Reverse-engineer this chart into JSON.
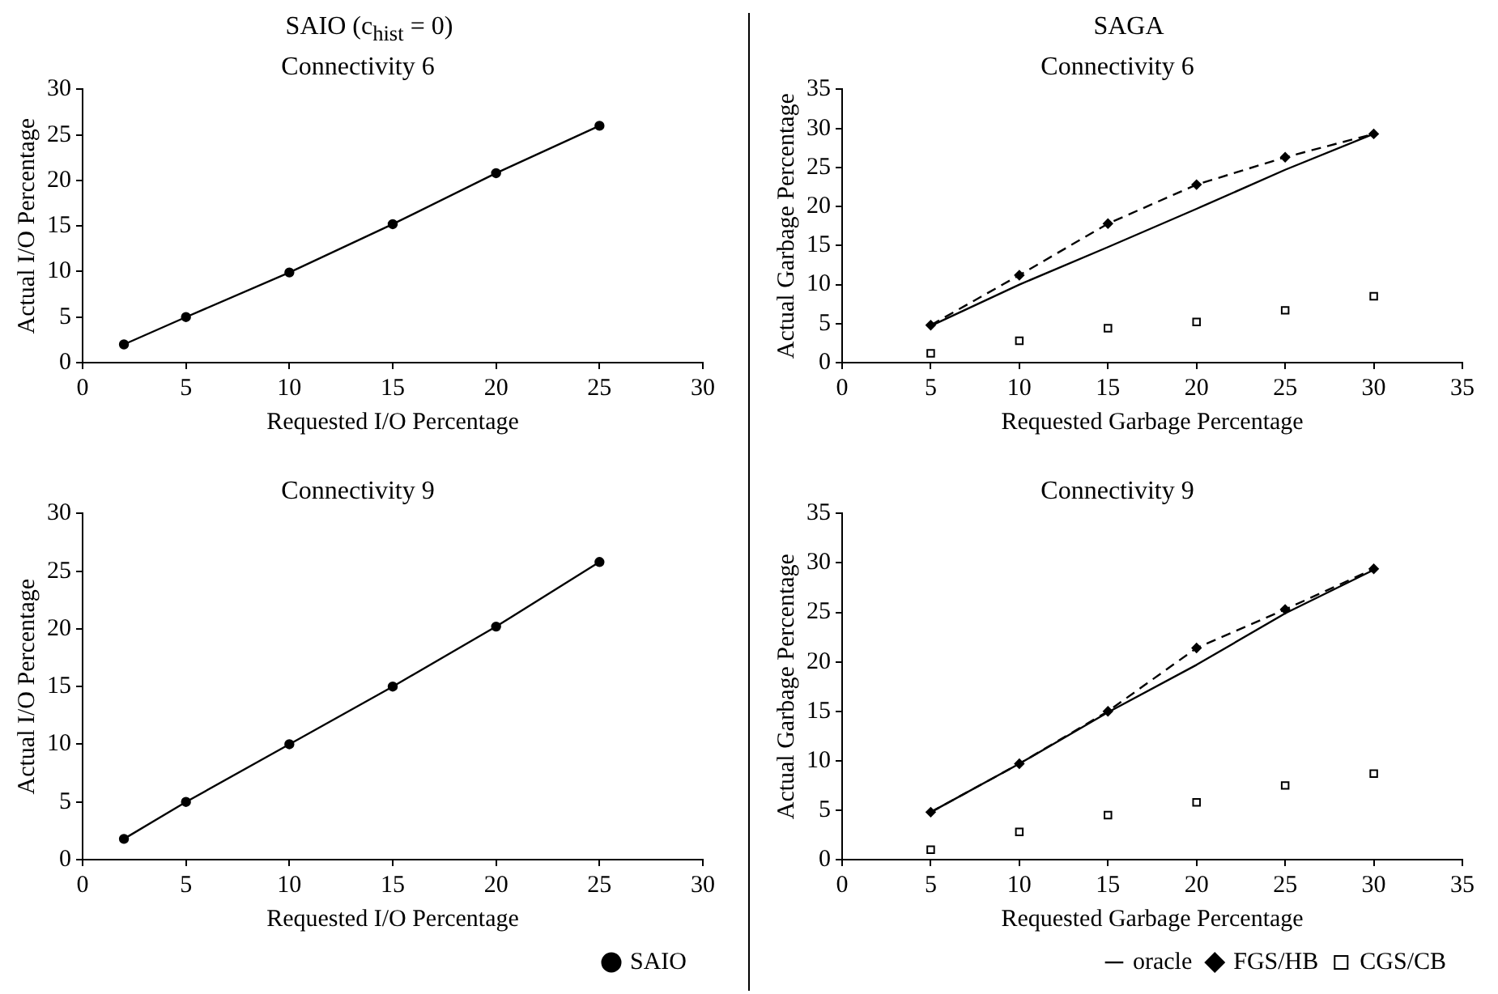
{
  "chart_data": [
    {
      "type": "line",
      "subtitle": "SAIO (c$_{hist}$ = 0)",
      "title": "Connectivity 6",
      "xlabel": "Requested I/O Percentage",
      "ylabel": "Actual I/O Percentage",
      "x": [
        2,
        5,
        10,
        15,
        20,
        25
      ],
      "series": [
        {
          "color": "#000000",
          "values": [
            2,
            5,
            9.9,
            15.2,
            20.8,
            26
          ]
        }
      ],
      "marker": "circle",
      "line_style": "solid",
      "xlim": [
        0,
        30
      ],
      "xticks": [
        0,
        5,
        10,
        15,
        20,
        25,
        30
      ],
      "ylim": [
        0,
        30
      ],
      "yticks": [
        0,
        5,
        10,
        15,
        20,
        25,
        30
      ],
      "grid": false,
      "legend": false
    },
    {
      "type": "line",
      "subtitle": "SAGA",
      "title": "Connectivity 6",
      "xlabel": "Requested Garbage Percentage",
      "ylabel": "Actual Garbage Percentage",
      "x": [
        5,
        10,
        15,
        20,
        25,
        30
      ],
      "series": [
        {
          "color": "#000000",
          "marker": "none",
          "line_style": "solid",
          "values": [
            4.7,
            10,
            14.8,
            19.7,
            24.7,
            29.3
          ]
        },
        {
          "color": "#000000",
          "marker": "diamond",
          "line_style": "dashed",
          "values": [
            4.8,
            11.2,
            17.8,
            22.8,
            26.3,
            29.3
          ]
        },
        {
          "type": "scatter",
          "color": "#000000",
          "marker": "square",
          "values": [
            1.2,
            2.8,
            4.4,
            5.2,
            6.7,
            8.5
          ]
        }
      ],
      "xlim": [
        0,
        35
      ],
      "xticks": [
        0,
        5,
        10,
        15,
        20,
        25,
        30,
        35
      ],
      "ylim": [
        0,
        35
      ],
      "yticks": [
        0,
        5,
        10,
        15,
        20,
        25,
        30,
        35
      ],
      "grid": false,
      "legend": false
    },
    {
      "type": "line",
      "title": "Connectivity 9",
      "xlabel": "Requested I/O Percentage",
      "ylabel": "Actual I/O Percentage",
      "x": [
        2,
        5,
        10,
        15,
        20,
        25
      ],
      "series": [
        {
          "name": "SAIO",
          "color": "#000000",
          "values": [
            1.8,
            5,
            10,
            15,
            20.2,
            25.8
          ]
        }
      ],
      "marker": "circle",
      "line_style": "solid",
      "xlim": [
        0,
        30
      ],
      "xticks": [
        0,
        5,
        10,
        15,
        20,
        25,
        30
      ],
      "ylim": [
        0,
        30
      ],
      "yticks": [
        0,
        5,
        10,
        15,
        20,
        25,
        30
      ],
      "grid": false,
      "legend": "bottom"
    },
    {
      "type": "line",
      "title": "Connectivity 9",
      "xlabel": "Requested Garbage Percentage",
      "ylabel": "Actual Garbage Percentage",
      "x": [
        5,
        10,
        15,
        20,
        25,
        30
      ],
      "series": [
        {
          "name": "oracle",
          "color": "#000000",
          "marker": "none",
          "line_style": "solid",
          "values": [
            4.8,
            9.7,
            14.9,
            19.7,
            24.9,
            29.3
          ]
        },
        {
          "name": "FGS/HB",
          "color": "#000000",
          "marker": "diamond",
          "line_style": "dashed",
          "values": [
            4.8,
            9.7,
            15,
            21.4,
            25.3,
            29.4
          ]
        },
        {
          "name": "CGS/CB",
          "type": "scatter",
          "color": "#000000",
          "marker": "square",
          "values": [
            1,
            2.8,
            4.5,
            5.8,
            7.5,
            8.7
          ]
        }
      ],
      "xlim": [
        0,
        35
      ],
      "xticks": [
        0,
        5,
        10,
        15,
        20,
        25,
        30,
        35
      ],
      "ylim": [
        0,
        35
      ],
      "yticks": [
        0,
        5,
        10,
        15,
        20,
        25,
        30,
        35
      ],
      "grid": false,
      "legend": "bottom"
    }
  ]
}
